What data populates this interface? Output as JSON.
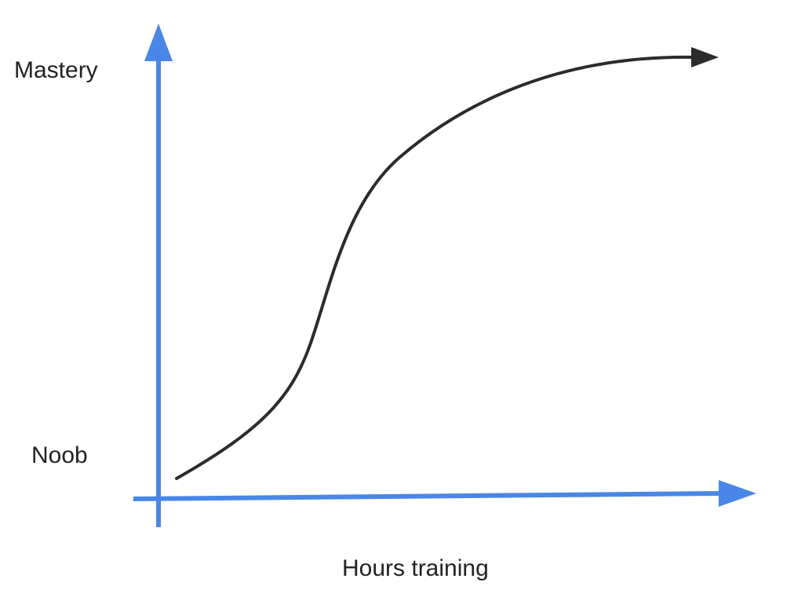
{
  "diagram": {
    "y_top_label": "Mastery",
    "y_bottom_label": "Noob",
    "x_axis_label": "Hours training",
    "colors": {
      "axis": "#4A86E8",
      "curve": "#2B2B2B",
      "text": "#222222",
      "background": "#FFFFFF"
    },
    "curve_shape": "s-curve"
  }
}
